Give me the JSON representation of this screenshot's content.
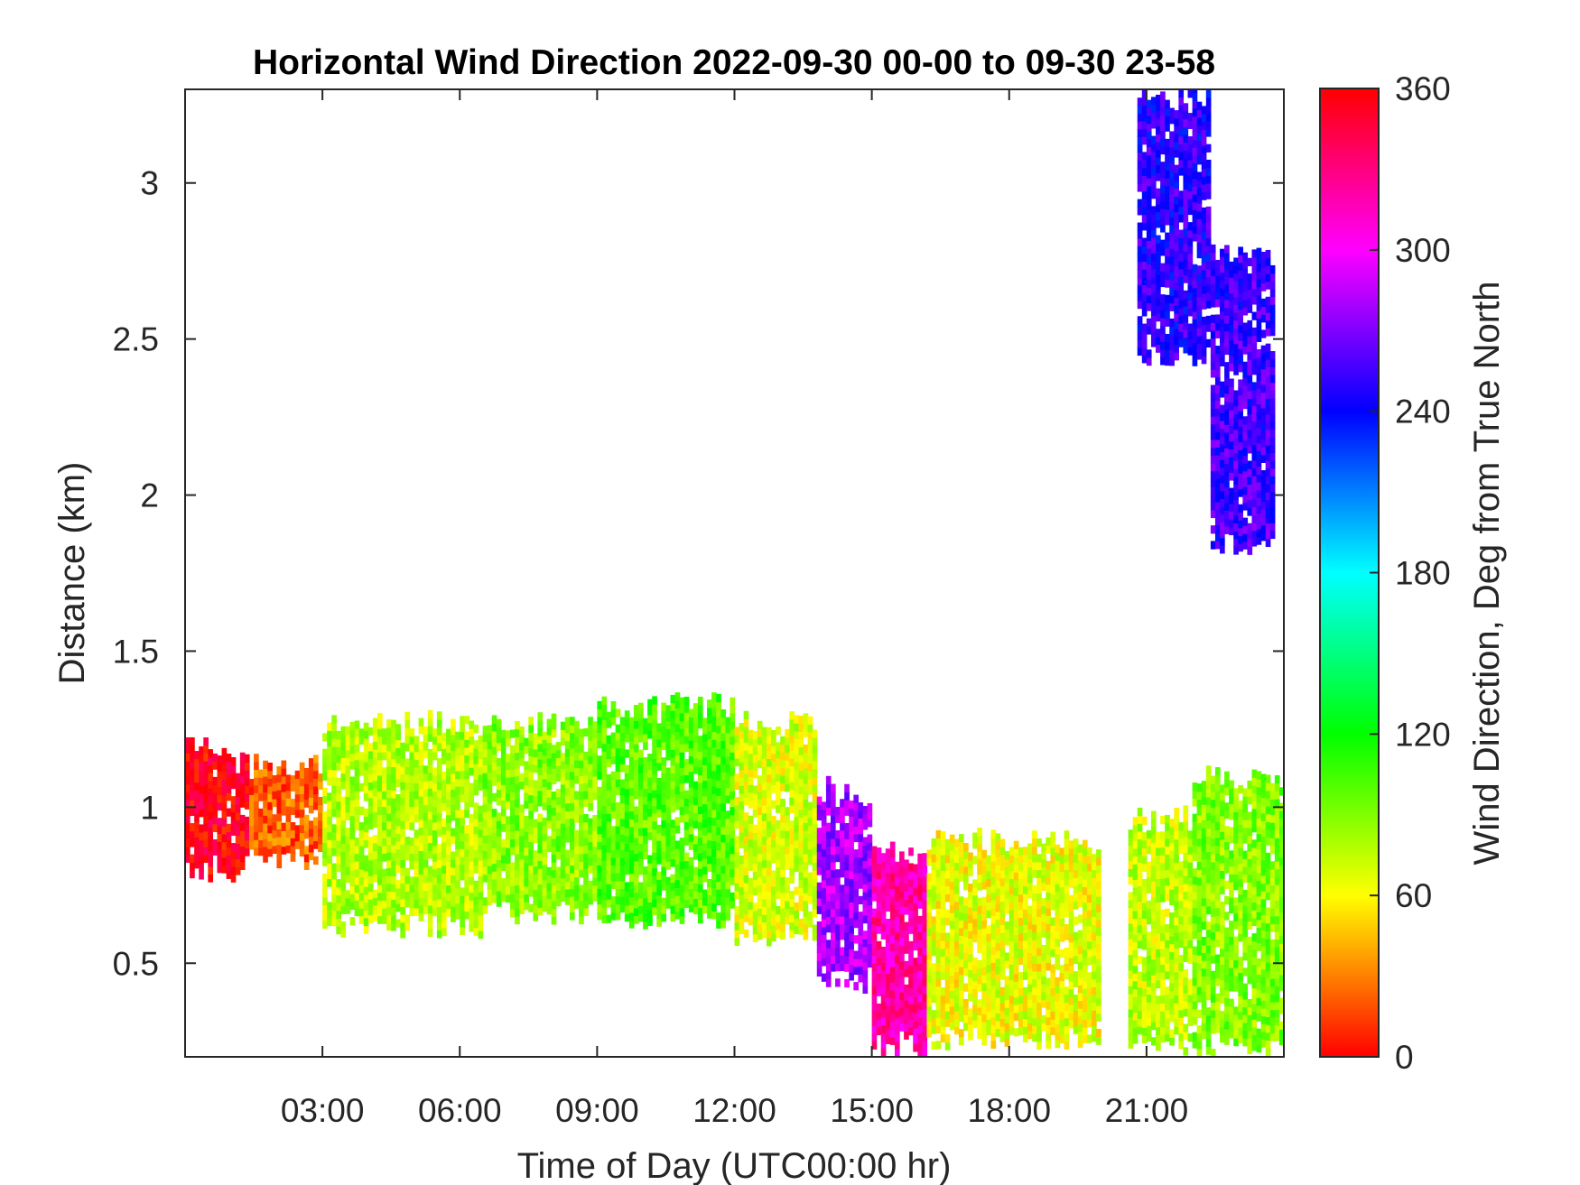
{
  "chart_data": {
    "type": "heatmap",
    "title": "Horizontal Wind Direction 2022-09-30 00-00 to 09-30 23-58",
    "xlabel": "Time of Day (UTC00:00 hr)",
    "ylabel": "Distance (km)",
    "colorbar_label": "Wind Direction, Deg from True North",
    "x_unit": "hour",
    "xlim": [
      0,
      24
    ],
    "ylim": [
      0.2,
      3.3
    ],
    "xticks": [
      {
        "value": 3,
        "label": "03:00"
      },
      {
        "value": 6,
        "label": "06:00"
      },
      {
        "value": 9,
        "label": "09:00"
      },
      {
        "value": 12,
        "label": "12:00"
      },
      {
        "value": 15,
        "label": "15:00"
      },
      {
        "value": 18,
        "label": "18:00"
      },
      {
        "value": 21,
        "label": "21:00"
      }
    ],
    "yticks": [
      {
        "value": 0.5,
        "label": "0.5"
      },
      {
        "value": 1,
        "label": "1"
      },
      {
        "value": 1.5,
        "label": "1.5"
      },
      {
        "value": 2,
        "label": "2"
      },
      {
        "value": 2.5,
        "label": "2.5"
      },
      {
        "value": 3,
        "label": "3"
      }
    ],
    "clim": [
      0,
      360
    ],
    "cticks": [
      {
        "value": 0,
        "label": "0"
      },
      {
        "value": 60,
        "label": "60"
      },
      {
        "value": 120,
        "label": "120"
      },
      {
        "value": 180,
        "label": "180"
      },
      {
        "value": 240,
        "label": "240"
      },
      {
        "value": 300,
        "label": "300"
      },
      {
        "value": 360,
        "label": "360"
      }
    ],
    "colormap": [
      "#ff0000",
      "#ffff00",
      "#00ff00",
      "#00ffff",
      "#0000ff",
      "#ff00ff",
      "#ff0000"
    ],
    "regions": [
      {
        "x0": 0.0,
        "x1": 1.4,
        "y0": 0.75,
        "y1": 1.22,
        "dir": 355
      },
      {
        "x0": 1.4,
        "x1": 3.0,
        "y0": 0.8,
        "y1": 1.15,
        "dir": 22
      },
      {
        "x0": 3.0,
        "x1": 6.5,
        "y0": 0.58,
        "y1": 1.3,
        "dir": 78
      },
      {
        "x0": 6.5,
        "x1": 9.0,
        "y0": 0.62,
        "y1": 1.3,
        "dir": 88
      },
      {
        "x0": 9.0,
        "x1": 12.0,
        "y0": 0.6,
        "y1": 1.36,
        "dir": 100
      },
      {
        "x0": 12.0,
        "x1": 13.8,
        "y0": 0.55,
        "y1": 1.3,
        "dir": 70
      },
      {
        "x0": 13.8,
        "x1": 15.0,
        "y0": 0.4,
        "y1": 1.08,
        "dir": 280
      },
      {
        "x0": 15.0,
        "x1": 16.2,
        "y0": 0.2,
        "y1": 0.88,
        "dir": 320
      },
      {
        "x0": 16.2,
        "x1": 20.0,
        "y0": 0.22,
        "y1": 0.92,
        "dir": 65
      },
      {
        "x0": 20.6,
        "x1": 22.0,
        "y0": 0.2,
        "y1": 1.0,
        "dir": 75
      },
      {
        "x0": 22.0,
        "x1": 24.0,
        "y0": 0.2,
        "y1": 1.12,
        "dir": 90
      },
      {
        "x0": 20.8,
        "x1": 22.4,
        "y0": 2.4,
        "y1": 3.3,
        "dir": 250
      },
      {
        "x0": 22.4,
        "x1": 23.8,
        "y0": 1.8,
        "y1": 2.8,
        "dir": 255
      }
    ]
  }
}
